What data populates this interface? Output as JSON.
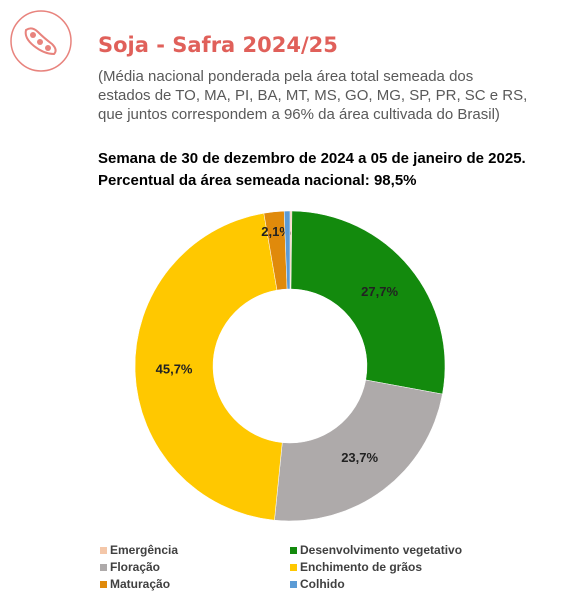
{
  "header": {
    "title": "Soja - Safra 2024/25",
    "subtitle": "(Média nacional ponderada pela área total semeada dos estados de TO, MA, PI, BA, MT, MS, GO, MG, SP, PR, SC e RS, que juntos correspondem a 96% da área cultivada do Brasil)",
    "week": "Semana de 30 de dezembro de 2024 a 05 de janeiro de 2025.",
    "percent": "Percentual da área semeada nacional: 98,5%"
  },
  "chart_data": {
    "type": "donut",
    "categories": [
      "Emergência",
      "Desenvolvimento vegetativo",
      "Floração",
      "Enchimento de grãos",
      "Maturação",
      "Colhido"
    ],
    "values": [
      0.2,
      27.7,
      23.7,
      45.7,
      2.1,
      0.6
    ],
    "value_labels": [
      null,
      "27,7%",
      "23,7%",
      "45,7%",
      "2,1%",
      null
    ],
    "colors": [
      "#f4c7a9",
      "#138a0d",
      "#aeaaaa",
      "#ffc800",
      "#e08a0b",
      "#5b9bd5"
    ]
  }
}
